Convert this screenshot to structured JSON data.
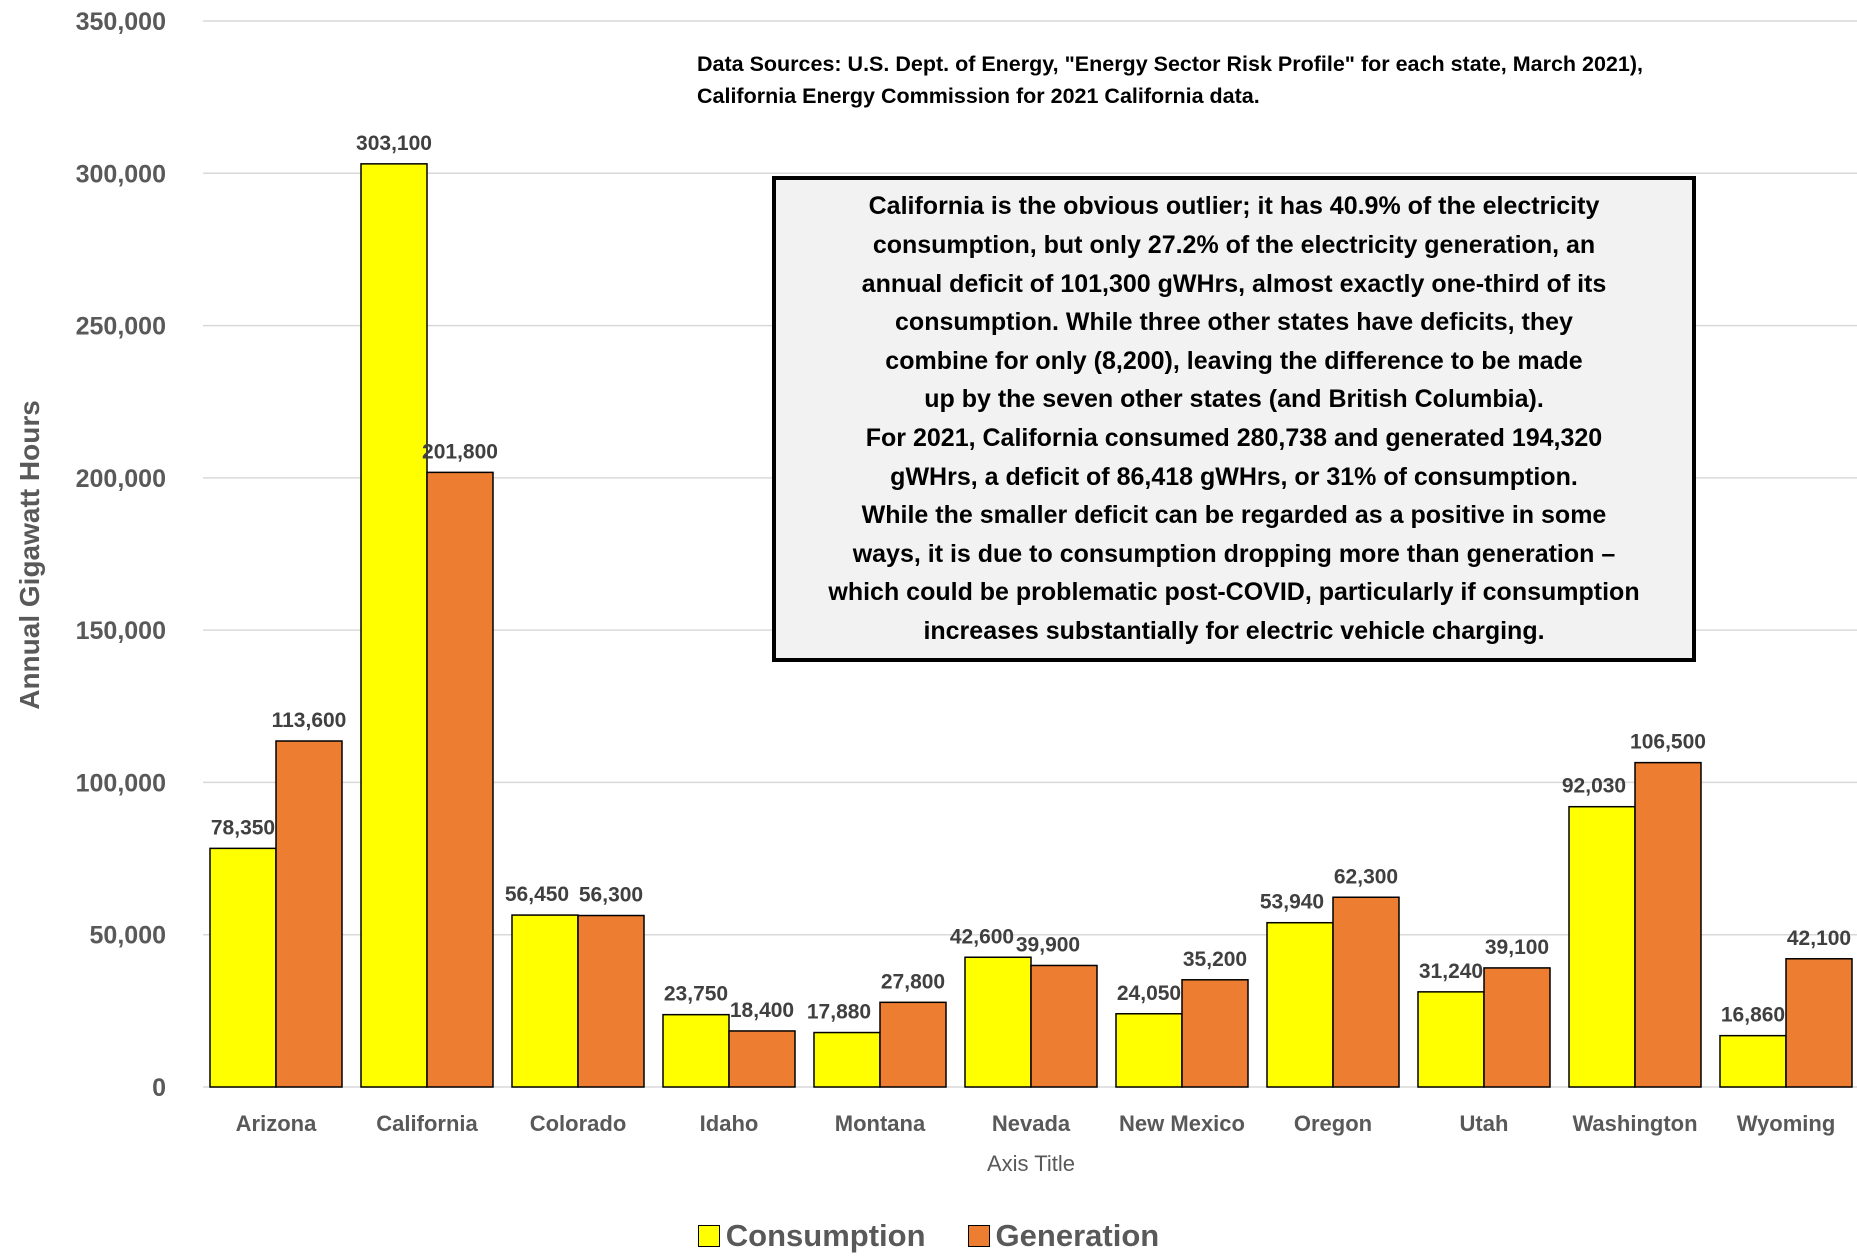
{
  "colors": {
    "consumption": "#ffff00",
    "generation": "#ed7d31",
    "gridline": "#d9d9d9",
    "axis_text": "#595959",
    "annotation_background": "#f2f2f2"
  },
  "source_note": "Data Sources:  U.S. Dept. of Energy, \"Energy Sector Risk Profile\" for each state, March 2021),\nCalifornia Energy Commission for 2021 California data.",
  "annotation": "California is the obvious outlier; it has 40.9% of the electricity\nconsumption,  but only 27.2% of the electricity generation, an\nannual deficit of 101,300 gWHrs, almost exactly one-third of its\nconsumption.  While three other states have deficits, they\ncombine for only (8,200), leaving the difference to be made\nup by the seven other states (and British Columbia).\nFor 2021, California consumed 280,738 and generated 194,320\ngWHrs, a deficit of 86,418 gWHrs, or 31% of consumption.\nWhile the smaller deficit can be regarded as a positive in some\nways, it is due to consumption dropping more than generation –\nwhich could be problematic post-COVID, particularly if consumption\nincreases substantially for electric vehicle charging.",
  "chart_data": {
    "type": "bar",
    "title": "",
    "xlabel": "Axis Title",
    "ylabel": "Annual Gigawatt Hours",
    "ylim": [
      0,
      350000
    ],
    "yticks": [
      0,
      50000,
      100000,
      150000,
      200000,
      250000,
      300000,
      350000
    ],
    "ytick_labels": [
      "0",
      "50,000",
      "100,000",
      "150,000",
      "200,000",
      "250,000",
      "300,000",
      "350,000"
    ],
    "grid": true,
    "legend_position": "bottom-center",
    "categories": [
      "Arizona",
      "California",
      "Colorado",
      "Idaho",
      "Montana",
      "Nevada",
      "New Mexico",
      "Oregon",
      "Utah",
      "Washington",
      "Wyoming"
    ],
    "series": [
      {
        "name": "Consumption",
        "values": [
          78350,
          303100,
          56450,
          23750,
          17880,
          42600,
          24050,
          53940,
          31240,
          92030,
          16860
        ],
        "labels": [
          "78,350",
          "303,100",
          "56,450",
          "23,750",
          "17,880",
          "42,600",
          "24,050",
          "53,940",
          "31,240",
          "92,030",
          "16,860"
        ]
      },
      {
        "name": "Generation",
        "values": [
          113600,
          201800,
          56300,
          18400,
          27800,
          39900,
          35200,
          62300,
          39100,
          106500,
          42100
        ],
        "labels": [
          "113,600",
          "201,800",
          "56,300",
          "18,400",
          "27,800",
          "39,900",
          "35,200",
          "62,300",
          "39,100",
          "106,500",
          "42,100"
        ]
      }
    ]
  }
}
